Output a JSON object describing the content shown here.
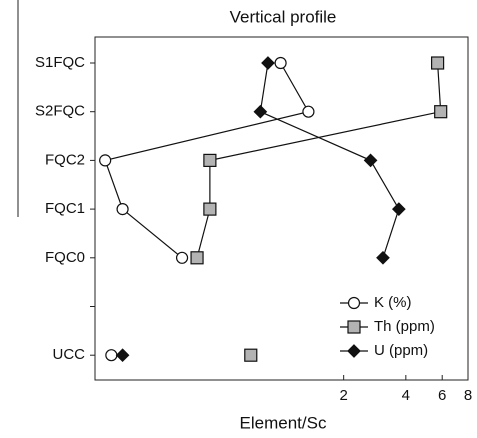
{
  "chart_data": {
    "type": "line",
    "title": "Vertical profile",
    "xlabel": "Element/Sc",
    "categories": [
      "S1FQC",
      "S2FQC",
      "FQC2",
      "FQC1",
      "FQC0",
      null,
      "UCC"
    ],
    "xscale": "log",
    "xlim": [
      0.125,
      8
    ],
    "xticks": [
      2,
      4,
      6,
      8
    ],
    "legend": "lower right",
    "series": [
      {
        "name": "K (%)",
        "color": "#ffffff",
        "marker": "circle",
        "values": [
          0.99,
          1.35,
          0.14,
          0.17,
          0.33,
          null,
          0.15
        ]
      },
      {
        "name": "Th (ppm)",
        "color": "#b3b3b3",
        "marker": "square",
        "values": [
          5.7,
          5.9,
          0.45,
          0.45,
          0.39,
          null,
          0.71
        ]
      },
      {
        "name": "U (ppm)",
        "color": "#111111",
        "marker": "diamond",
        "values": [
          0.86,
          0.79,
          2.7,
          3.7,
          3.1,
          null,
          0.17
        ]
      }
    ]
  }
}
